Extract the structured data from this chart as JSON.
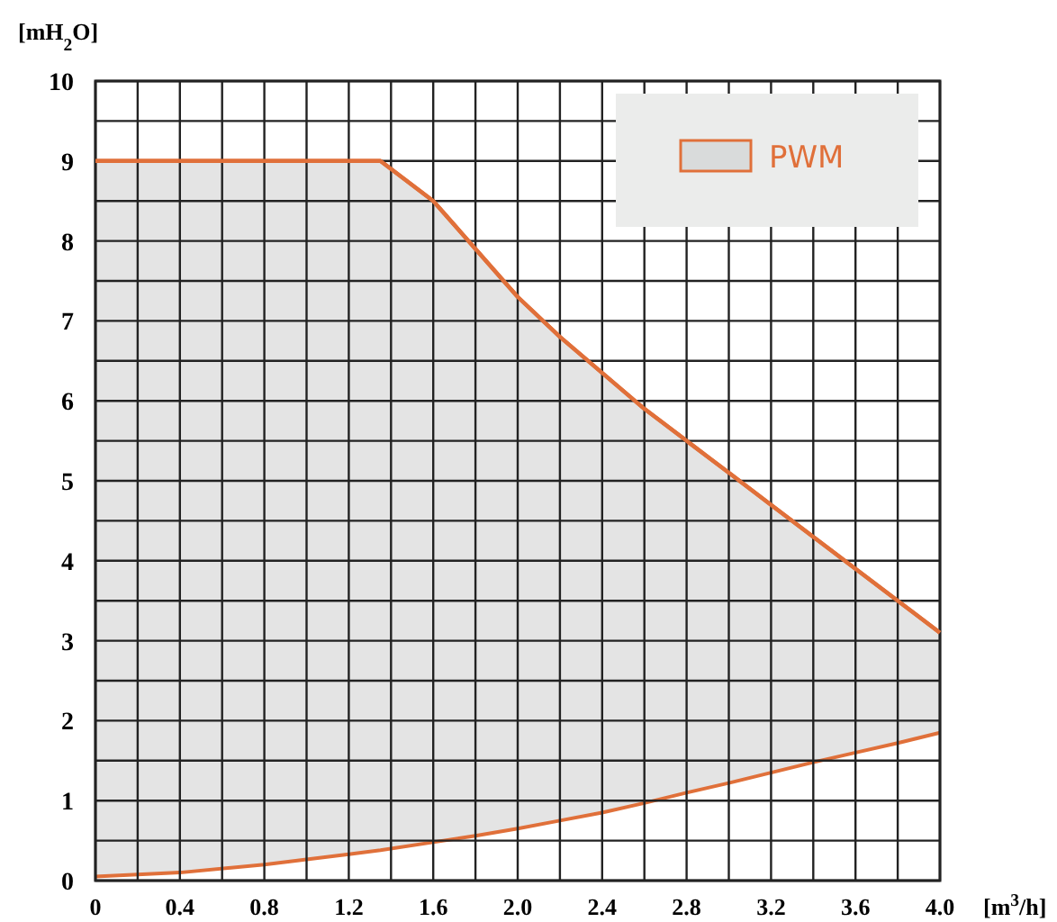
{
  "chart_data": {
    "type": "area",
    "xlabel": "[m$^{3}$/h]",
    "ylabel": "[mH$_{2}$O]",
    "x": [
      0,
      0.4,
      0.8,
      1.2,
      1.35,
      1.6,
      1.8,
      2.0,
      2.2,
      2.4,
      2.6,
      2.8,
      3.0,
      3.2,
      3.4,
      3.6,
      3.8,
      4.0
    ],
    "series": [
      {
        "name": "PWM",
        "color": "#e0703a",
        "values": [
          9,
          9,
          9,
          9,
          9,
          8.5,
          7.9,
          7.3,
          6.8,
          6.35,
          5.9,
          5.5,
          5.1,
          4.7,
          4.3,
          3.9,
          3.5,
          3.1
        ]
      },
      {
        "type": "line",
        "color": "#e0703a",
        "values": [
          0.05,
          0.1,
          0.2,
          0.33,
          0.38,
          0.48,
          0.56,
          0.65,
          0.75,
          0.85,
          0.97,
          1.1,
          1.22,
          1.35,
          1.48,
          1.6,
          1.72,
          1.85
        ]
      }
    ],
    "xlim": [
      0,
      4
    ],
    "xticks": [
      0,
      {
        "value": 0.2,
        "label": null
      },
      0.4,
      {
        "value": 0.6,
        "label": null
      },
      0.8,
      {
        "value": 1,
        "label": null
      },
      1.2,
      {
        "value": 1.4,
        "label": null
      },
      1.6,
      {
        "value": 1.8,
        "label": null
      },
      {
        "value": 2,
        "label": "2.0"
      },
      {
        "value": 2.2,
        "label": null
      },
      2.4,
      {
        "value": 2.6,
        "label": null
      },
      2.8,
      {
        "value": 3,
        "label": null
      },
      3.2,
      {
        "value": 3.4,
        "label": null
      },
      3.6,
      {
        "value": 3.8,
        "label": null
      },
      {
        "value": 4,
        "label": "4.0"
      }
    ],
    "ylim": [
      0,
      10
    ],
    "yticks": [
      0,
      {
        "value": 0.5,
        "label": null
      },
      1,
      {
        "value": 1.5,
        "label": null
      },
      2,
      {
        "value": 2.5,
        "label": null
      },
      3,
      {
        "value": 3.5,
        "label": null
      },
      4,
      {
        "value": 4.5,
        "label": null
      },
      5,
      {
        "value": 5.5,
        "label": null
      },
      6,
      {
        "value": 6.5,
        "label": null
      },
      7,
      {
        "value": 7.5,
        "label": null
      },
      8,
      {
        "value": 8.5,
        "label": null
      },
      9,
      {
        "value": 9.5,
        "label": null
      },
      10
    ],
    "grid": true,
    "legend": "top right"
  }
}
